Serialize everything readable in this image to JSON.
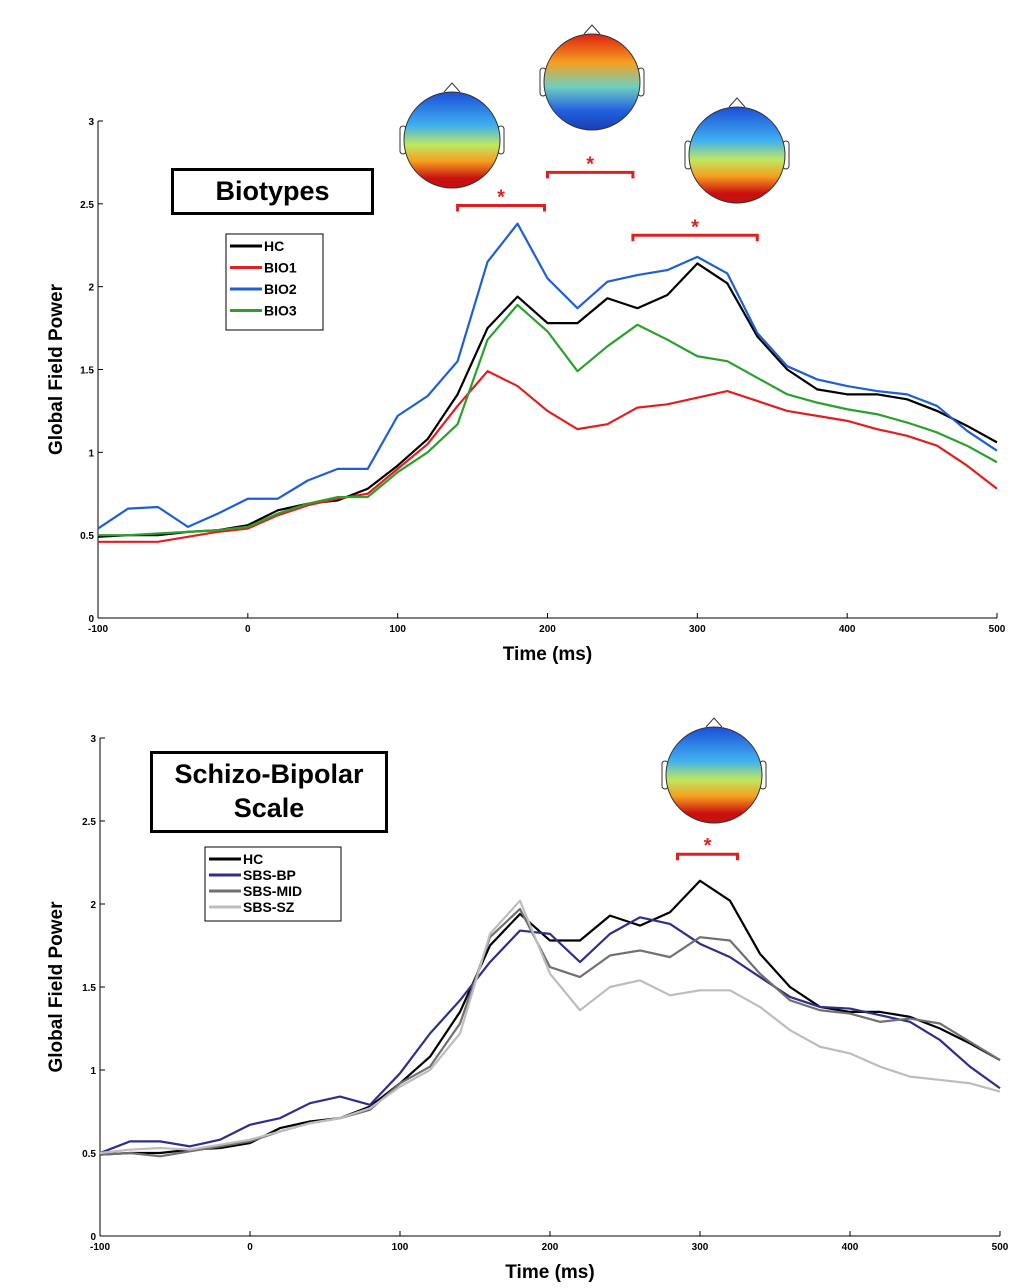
{
  "chart_data": [
    {
      "type": "line",
      "title": "Biotypes",
      "x_label": "Time (ms)",
      "y_label": "Global Field Power",
      "x": [
        -100,
        -80,
        -60,
        -40,
        -20,
        0,
        20,
        40,
        60,
        80,
        100,
        120,
        140,
        160,
        180,
        200,
        220,
        240,
        260,
        280,
        300,
        320,
        340,
        360,
        380,
        400,
        420,
        440,
        460,
        480,
        500
      ],
      "xlim": [
        -100,
        500
      ],
      "xticks": [
        -100,
        0,
        100,
        200,
        300,
        400,
        500
      ],
      "ylim": [
        0,
        3
      ],
      "yticks": [
        0,
        0.5,
        1,
        1.5,
        2,
        2.5,
        3
      ],
      "series": [
        {
          "name": "HC",
          "color": "#000000",
          "values": [
            0.49,
            0.5,
            0.5,
            0.52,
            0.53,
            0.56,
            0.65,
            0.69,
            0.71,
            0.78,
            0.92,
            1.08,
            1.35,
            1.75,
            1.94,
            1.78,
            1.78,
            1.93,
            1.87,
            1.95,
            2.14,
            2.02,
            1.7,
            1.5,
            1.38,
            1.35,
            1.35,
            1.32,
            1.25,
            1.16,
            1.06
          ]
        },
        {
          "name": "BIO1",
          "color": "#e02020",
          "values": [
            0.46,
            0.46,
            0.46,
            0.49,
            0.52,
            0.54,
            0.62,
            0.68,
            0.72,
            0.75,
            0.9,
            1.05,
            1.28,
            1.49,
            1.4,
            1.25,
            1.14,
            1.17,
            1.27,
            1.29,
            1.33,
            1.37,
            1.31,
            1.25,
            1.22,
            1.19,
            1.14,
            1.1,
            1.04,
            0.92,
            0.78
          ]
        },
        {
          "name": "BIO2",
          "color": "#1f5fd6",
          "values": [
            0.54,
            0.66,
            0.67,
            0.55,
            0.63,
            0.72,
            0.72,
            0.83,
            0.9,
            0.9,
            1.22,
            1.34,
            1.55,
            2.15,
            2.38,
            2.05,
            1.87,
            2.03,
            2.07,
            2.1,
            2.18,
            2.08,
            1.72,
            1.52,
            1.44,
            1.4,
            1.37,
            1.35,
            1.28,
            1.13,
            1.01
          ]
        },
        {
          "name": "BIO3",
          "color": "#2ca02c",
          "values": [
            0.5,
            0.5,
            0.51,
            0.52,
            0.53,
            0.55,
            0.63,
            0.69,
            0.73,
            0.73,
            0.88,
            1.0,
            1.17,
            1.68,
            1.89,
            1.73,
            1.49,
            1.64,
            1.77,
            1.68,
            1.58,
            1.55,
            1.45,
            1.35,
            1.3,
            1.26,
            1.23,
            1.18,
            1.12,
            1.04,
            0.94
          ]
        }
      ],
      "annotations": [
        {
          "text": "*",
          "x": [
            140,
            198
          ],
          "y": 2.49
        },
        {
          "text": "*",
          "x": [
            200,
            257
          ],
          "y": 2.69
        },
        {
          "text": "*",
          "x": [
            257,
            340
          ],
          "y": 2.31
        }
      ]
    },
    {
      "type": "line",
      "title": "Schizo-Bipolar Scale",
      "x_label": "Time (ms)",
      "y_label": "Global Field Power",
      "x": [
        -100,
        -80,
        -60,
        -40,
        -20,
        0,
        20,
        40,
        60,
        80,
        100,
        120,
        140,
        160,
        180,
        200,
        220,
        240,
        260,
        280,
        300,
        320,
        340,
        360,
        380,
        400,
        420,
        440,
        460,
        480,
        500
      ],
      "xlim": [
        -100,
        500
      ],
      "xticks": [
        -100,
        0,
        100,
        200,
        300,
        400,
        500
      ],
      "ylim": [
        0,
        3
      ],
      "yticks": [
        0,
        0.5,
        1,
        1.5,
        2,
        2.5,
        3
      ],
      "series": [
        {
          "name": "HC",
          "color": "#000000",
          "values": [
            0.49,
            0.5,
            0.5,
            0.52,
            0.53,
            0.56,
            0.65,
            0.69,
            0.71,
            0.78,
            0.92,
            1.08,
            1.35,
            1.75,
            1.94,
            1.78,
            1.78,
            1.93,
            1.87,
            1.95,
            2.14,
            2.02,
            1.7,
            1.5,
            1.38,
            1.35,
            1.35,
            1.32,
            1.25,
            1.16,
            1.06
          ]
        },
        {
          "name": "SBS-BP",
          "color": "#2e2f8a",
          "values": [
            0.5,
            0.57,
            0.57,
            0.54,
            0.58,
            0.67,
            0.71,
            0.8,
            0.84,
            0.79,
            0.98,
            1.22,
            1.42,
            1.65,
            1.84,
            1.82,
            1.65,
            1.82,
            1.92,
            1.88,
            1.76,
            1.68,
            1.56,
            1.44,
            1.38,
            1.37,
            1.33,
            1.29,
            1.18,
            1.02,
            0.89
          ]
        },
        {
          "name": "SBS-MID",
          "color": "#707070",
          "values": [
            0.49,
            0.5,
            0.48,
            0.51,
            0.54,
            0.57,
            0.63,
            0.68,
            0.71,
            0.76,
            0.92,
            1.02,
            1.28,
            1.8,
            1.97,
            1.62,
            1.56,
            1.69,
            1.72,
            1.68,
            1.8,
            1.78,
            1.58,
            1.42,
            1.36,
            1.34,
            1.29,
            1.31,
            1.28,
            1.17,
            1.06
          ]
        },
        {
          "name": "SBS-SZ",
          "color": "#bdbdbd",
          "values": [
            0.5,
            0.52,
            0.53,
            0.52,
            0.55,
            0.58,
            0.63,
            0.68,
            0.71,
            0.77,
            0.9,
            1.0,
            1.22,
            1.82,
            2.02,
            1.58,
            1.36,
            1.5,
            1.54,
            1.45,
            1.48,
            1.48,
            1.38,
            1.24,
            1.14,
            1.1,
            1.02,
            0.96,
            0.94,
            0.92,
            0.87
          ]
        }
      ],
      "annotations": [
        {
          "text": "*",
          "x": [
            285,
            325
          ],
          "y": 2.3
        }
      ]
    }
  ]
}
